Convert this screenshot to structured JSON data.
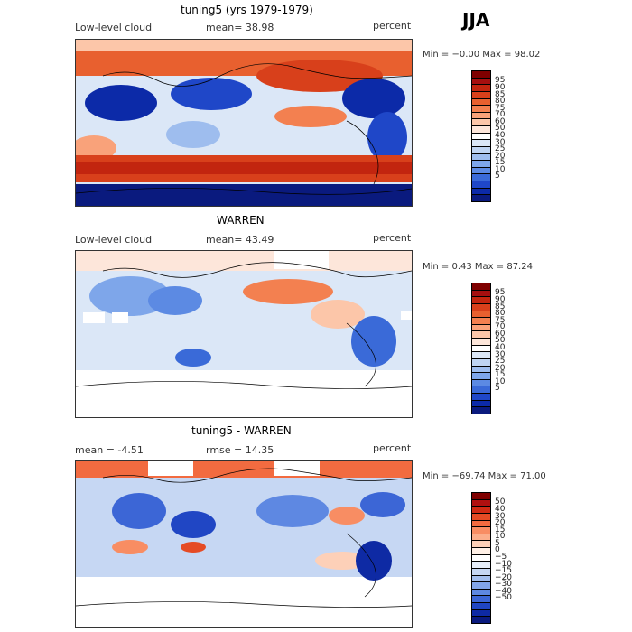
{
  "season": "JJA",
  "panels": [
    {
      "title": "tuning5 (yrs 1979-1979)",
      "left_label": "Low-level cloud",
      "center_label": "mean=  38.98",
      "right_label": "percent",
      "minmax": "Min =  −0.00 Max =  98.02",
      "colorbar": {
        "colors": [
          "#7f0000",
          "#a50f0f",
          "#c2250f",
          "#d8401b",
          "#e8602f",
          "#f38050",
          "#f9a27a",
          "#fcc6a9",
          "#fde6da",
          "#ffffff",
          "#dbe7f7",
          "#bfd4f2",
          "#9ebdee",
          "#7ea6ea",
          "#5c8ae3",
          "#3a6ad8",
          "#1f47c8",
          "#0c2aa8",
          "#0a1a7e"
        ],
        "labels": [
          "95",
          "90",
          "85",
          "80",
          "75",
          "70",
          "60",
          "50",
          "40",
          "30",
          "25",
          "20",
          "15",
          "10",
          "5"
        ]
      },
      "chart_data": {
        "type": "heatmap",
        "title": "tuning5 (yrs 1979-1979)",
        "variable": "Low-level cloud",
        "units": "percent",
        "mean": 38.98,
        "min": -0.0,
        "max": 98.02,
        "levels": [
          5,
          10,
          15,
          20,
          25,
          30,
          40,
          50,
          60,
          70,
          75,
          80,
          85,
          90,
          95
        ]
      }
    },
    {
      "title": "WARREN",
      "left_label": "Low-level cloud",
      "center_label": "mean=  43.49",
      "right_label": "percent",
      "minmax": "Min =   0.43 Max =  87.24",
      "colorbar": {
        "colors": [
          "#7f0000",
          "#a50f0f",
          "#c2250f",
          "#d8401b",
          "#e8602f",
          "#f38050",
          "#f9a27a",
          "#fcc6a9",
          "#fde6da",
          "#ffffff",
          "#dbe7f7",
          "#bfd4f2",
          "#9ebdee",
          "#7ea6ea",
          "#5c8ae3",
          "#3a6ad8",
          "#1f47c8",
          "#0c2aa8",
          "#0a1a7e"
        ],
        "labels": [
          "95",
          "90",
          "85",
          "80",
          "75",
          "70",
          "60",
          "50",
          "40",
          "30",
          "25",
          "20",
          "15",
          "10",
          "5"
        ]
      },
      "chart_data": {
        "type": "heatmap",
        "title": "WARREN",
        "variable": "Low-level cloud",
        "units": "percent",
        "mean": 43.49,
        "min": 0.43,
        "max": 87.24,
        "levels": [
          5,
          10,
          15,
          20,
          25,
          30,
          40,
          50,
          60,
          70,
          75,
          80,
          85,
          90,
          95
        ]
      }
    },
    {
      "title": "tuning5 - WARREN",
      "left_label": "mean =   -4.51",
      "center_label": "rmse =   14.35",
      "right_label": "percent",
      "minmax": "Min = −69.74 Max =  71.00",
      "colorbar": {
        "colors": [
          "#7f0000",
          "#b01010",
          "#d02a14",
          "#e54b25",
          "#f26b40",
          "#f88d63",
          "#fbae8b",
          "#fdd0b8",
          "#fff0e6",
          "#ffffff",
          "#e6eefa",
          "#c6d7f3",
          "#a4bfee",
          "#82a5e9",
          "#5e88e2",
          "#3c66d6",
          "#2046c4",
          "#0e2aa4",
          "#0a1a7e"
        ],
        "labels": [
          "50",
          "40",
          "30",
          "20",
          "15",
          "10",
          "5",
          "0",
          "−5",
          "−10",
          "−15",
          "−20",
          "−30",
          "−40",
          "−50"
        ]
      },
      "chart_data": {
        "type": "heatmap",
        "title": "tuning5 - WARREN",
        "variable": "Low-level cloud difference",
        "units": "percent",
        "mean": -4.51,
        "rmse": 14.35,
        "min": -69.74,
        "max": 71.0,
        "levels": [
          -50,
          -40,
          -30,
          -20,
          -15,
          -10,
          -5,
          0,
          5,
          10,
          15,
          20,
          30,
          40,
          50
        ]
      }
    }
  ]
}
